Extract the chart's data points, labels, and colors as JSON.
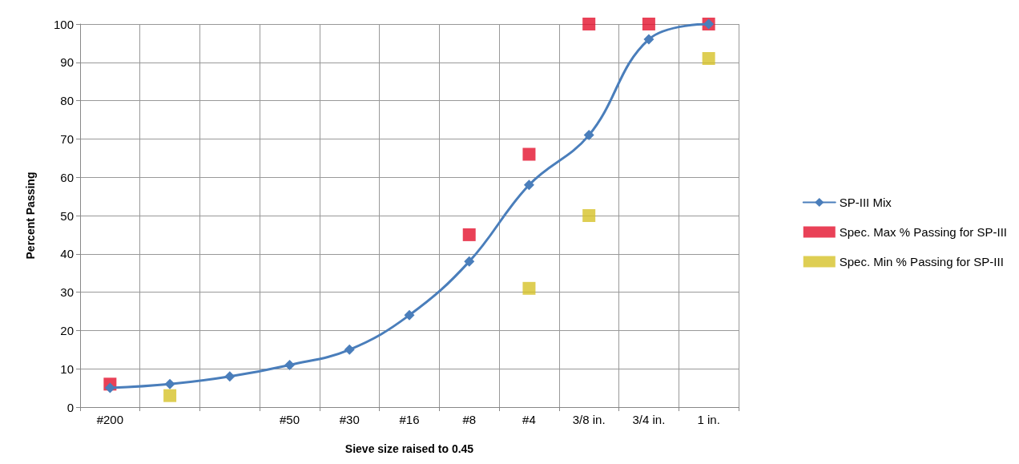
{
  "chart_data": {
    "type": "line",
    "xlabel": "Sieve size raised to 0.45",
    "ylabel": "Percent Passing",
    "categories": [
      "#200",
      null,
      null,
      "#50",
      "#30",
      "#16",
      "#8",
      "#4",
      "3/8 in.",
      "3/4 in.",
      "1 in."
    ],
    "ylim": [
      0,
      100
    ],
    "yticks": [
      0,
      10,
      20,
      30,
      40,
      50,
      60,
      70,
      80,
      90,
      100
    ],
    "grid": true,
    "legend": "right",
    "series": [
      {
        "name": "SP-III Mix",
        "color": "#4a7ebb",
        "marker": "diamond",
        "line_style": "solid",
        "values": [
          5,
          6,
          8,
          11,
          15,
          24,
          38,
          58,
          71,
          96,
          100
        ]
      },
      {
        "name": "Spec. Max % Passing for SP-III",
        "type": "scatter",
        "color": "#e3122d",
        "marker": "square",
        "values": [
          6,
          null,
          null,
          null,
          null,
          null,
          45,
          66,
          100,
          100,
          100
        ]
      },
      {
        "name": "Spec. Min % Passing for SP-III",
        "type": "scatter",
        "color": "#d6c228",
        "marker": "square",
        "values": [
          null,
          3,
          null,
          null,
          null,
          null,
          null,
          31,
          50,
          null,
          91
        ]
      }
    ]
  }
}
